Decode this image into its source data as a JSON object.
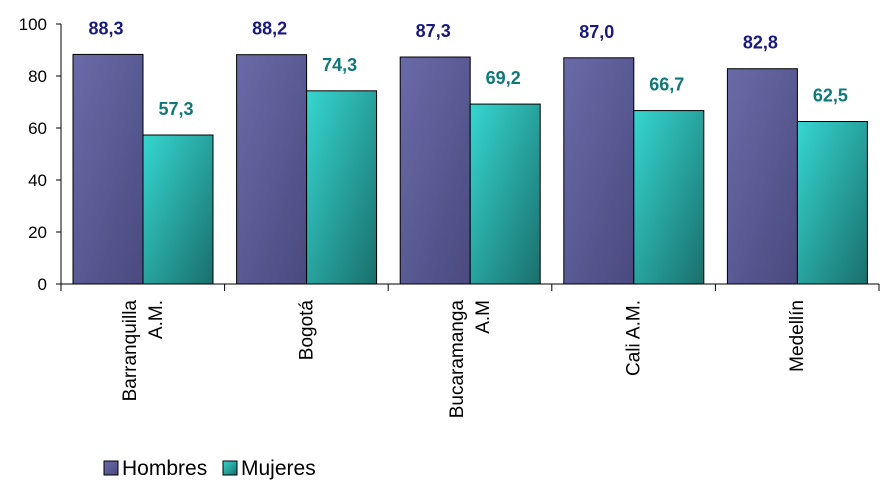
{
  "chart_data": {
    "type": "bar",
    "categories": [
      [
        "Barranquilla",
        "A.M."
      ],
      [
        "Bogotá"
      ],
      [
        "Bucaramanga",
        "A.M"
      ],
      [
        "Cali A.M."
      ],
      [
        "Medellín"
      ]
    ],
    "series": [
      {
        "name": "Hombres",
        "values": [
          88.3,
          88.2,
          87.3,
          87.0,
          82.8
        ],
        "labels": [
          "88,3",
          "88,2",
          "87,3",
          "87,0",
          "82,8"
        ],
        "color": "#5e5e9a",
        "label_color": "#1a1a7e"
      },
      {
        "name": "Mujeres",
        "values": [
          57.3,
          74.3,
          69.2,
          66.7,
          62.5
        ],
        "labels": [
          "57,3",
          "74,3",
          "69,2",
          "66,7",
          "62,5"
        ],
        "color": "#2fc7c2",
        "label_color": "#0e7a78"
      }
    ],
    "ylim": [
      0,
      100
    ],
    "yticks": [
      "0",
      "20",
      "40",
      "60",
      "80",
      "100"
    ],
    "ytick_values": [
      0,
      20,
      40,
      60,
      80,
      100
    ],
    "grid": false,
    "legend": "bottom-left",
    "title": "",
    "xlabel": "",
    "ylabel": ""
  }
}
